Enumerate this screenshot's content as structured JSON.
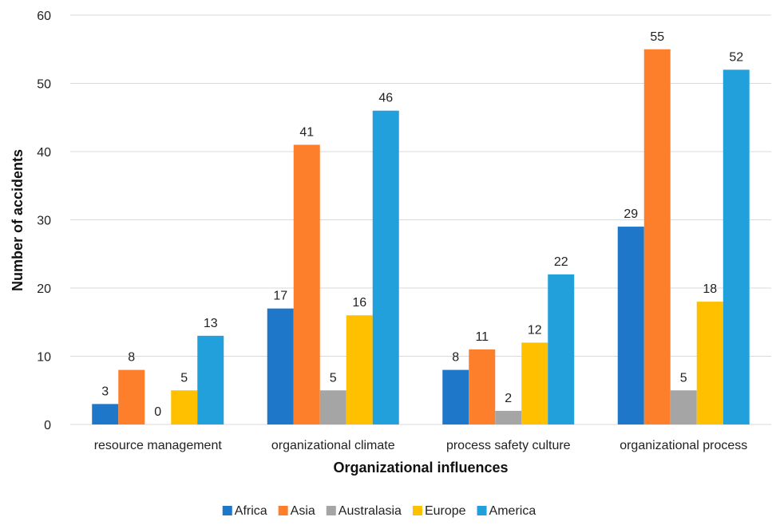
{
  "chart_data": {
    "type": "bar",
    "title": "",
    "xlabel": "Organizational influences",
    "ylabel": "Number of accidents",
    "ylim": [
      0,
      60
    ],
    "yticks": [
      0,
      10,
      20,
      30,
      40,
      50,
      60
    ],
    "grid": true,
    "legend_position": "bottom",
    "categories": [
      "resource management",
      "organizational climate",
      "process safety culture",
      "organizational process"
    ],
    "series": [
      {
        "name": "Africa",
        "color": "#1f77c9",
        "values": [
          3,
          17,
          8,
          29
        ]
      },
      {
        "name": "Asia",
        "color": "#fd7f2c",
        "values": [
          8,
          41,
          11,
          55
        ]
      },
      {
        "name": "Australasia",
        "color": "#a5a5a5",
        "values": [
          0,
          5,
          2,
          5
        ]
      },
      {
        "name": "Europe",
        "color": "#ffc000",
        "values": [
          5,
          16,
          12,
          18
        ]
      },
      {
        "name": "America",
        "color": "#22a0dc",
        "values": [
          13,
          46,
          22,
          52
        ]
      }
    ]
  }
}
